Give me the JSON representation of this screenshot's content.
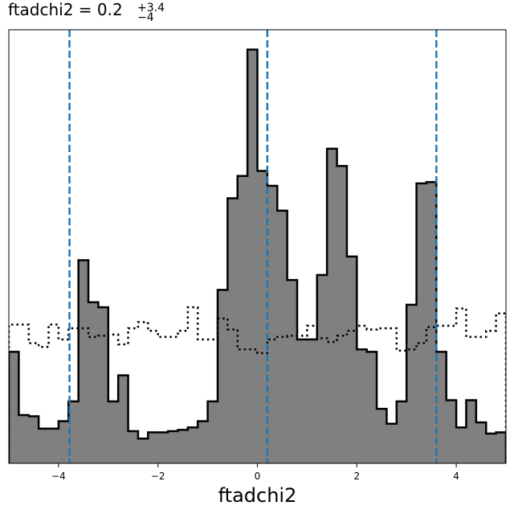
{
  "title": {
    "main": "ftadchi2 = 0.2",
    "sup": "+3.4",
    "sub": "−4"
  },
  "chart_data": {
    "type": "histogram",
    "xlabel": "ftadchi2",
    "xlim": [
      -5,
      5
    ],
    "ylim": [
      0,
      17.5
    ],
    "x_ticks": [
      -4,
      -2,
      0,
      2,
      4
    ],
    "x_tick_labels": [
      "−4",
      "−2",
      "0",
      "2",
      "4"
    ],
    "y_ticks_shown": false,
    "bin_edges": [
      -5.0,
      -4.8,
      -4.6,
      -4.4,
      -4.2,
      -4.0,
      -3.8,
      -3.6,
      -3.4,
      -3.2,
      -3.0,
      -2.8,
      -2.6,
      -2.4,
      -2.2,
      -2.0,
      -1.8,
      -1.6,
      -1.4,
      -1.2,
      -1.0,
      -0.8,
      -0.6,
      -0.4,
      -0.2,
      0.0,
      0.2,
      0.4,
      0.6,
      0.8,
      1.0,
      1.2,
      1.4,
      1.6,
      1.8,
      2.0,
      2.2,
      2.4,
      2.6,
      2.8,
      3.0,
      3.2,
      3.4,
      3.6,
      3.8,
      4.0,
      4.2,
      4.4,
      4.6,
      4.8,
      5.0
    ],
    "series": [
      {
        "style": "filled",
        "fill_color": "#808080",
        "edge_color": "#000000",
        "values": [
          4.5,
          1.95,
          1.9,
          1.4,
          1.4,
          1.7,
          2.5,
          8.2,
          6.5,
          6.3,
          2.5,
          3.55,
          1.3,
          1.0,
          1.25,
          1.25,
          1.3,
          1.35,
          1.45,
          1.7,
          2.5,
          7.0,
          10.7,
          11.6,
          16.7,
          11.8,
          11.2,
          10.2,
          7.4,
          5.0,
          5.0,
          7.6,
          12.7,
          12.0,
          8.35,
          4.6,
          4.5,
          2.2,
          1.6,
          2.5,
          6.4,
          11.3,
          11.35,
          4.5,
          2.55,
          1.45,
          2.55,
          1.65,
          1.2,
          1.25
        ]
      },
      {
        "style": "step-dotted",
        "edge_color": "#000000",
        "values": [
          5.6,
          5.6,
          4.85,
          4.7,
          5.6,
          5.0,
          5.45,
          5.45,
          5.1,
          5.15,
          5.2,
          4.8,
          5.45,
          5.7,
          5.35,
          5.1,
          5.1,
          5.35,
          6.3,
          5.0,
          5.0,
          5.85,
          5.4,
          4.6,
          4.6,
          4.45,
          5.0,
          5.1,
          5.15,
          5.15,
          5.55,
          5.05,
          4.9,
          5.15,
          5.35,
          5.55,
          5.4,
          5.45,
          5.45,
          4.55,
          4.6,
          4.85,
          5.5,
          5.55,
          5.55,
          6.25,
          5.1,
          5.1,
          5.35,
          6.05
        ]
      }
    ],
    "vlines": {
      "values": [
        -3.78,
        0.2,
        3.6
      ],
      "color": "#1f77b4",
      "style": "dashed"
    }
  }
}
